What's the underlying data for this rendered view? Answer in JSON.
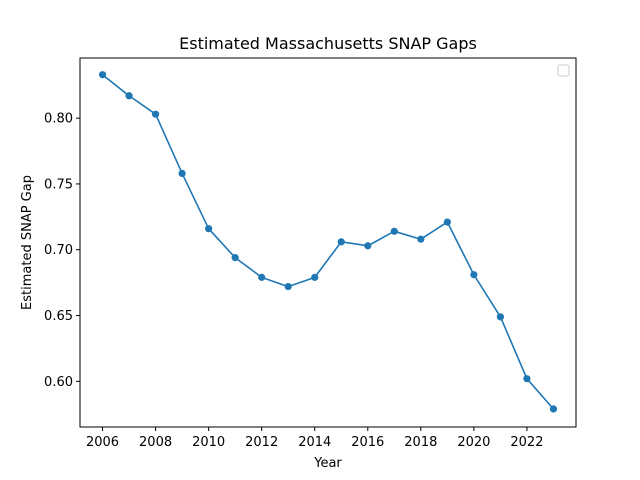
{
  "chart_data": {
    "type": "line",
    "title": "Estimated Massachusetts SNAP Gaps",
    "xlabel": "Year",
    "ylabel": "Estimated SNAP Gap",
    "x": [
      2006,
      2007,
      2008,
      2009,
      2010,
      2011,
      2012,
      2013,
      2014,
      2015,
      2016,
      2017,
      2018,
      2019,
      2020,
      2021,
      2022,
      2023
    ],
    "series": [
      {
        "name": "",
        "color": "#1f77b4",
        "values": [
          0.833,
          0.817,
          0.803,
          0.758,
          0.716,
          0.694,
          0.679,
          0.672,
          0.679,
          0.706,
          0.703,
          0.714,
          0.708,
          0.721,
          0.681,
          0.649,
          0.602,
          0.579
        ]
      }
    ],
    "xlim": [
      2005.15,
      2023.85
    ],
    "ylim": [
      0.5653,
      0.8457
    ],
    "xticks": [
      2006,
      2008,
      2010,
      2012,
      2014,
      2016,
      2018,
      2020,
      2022
    ],
    "yticks": [
      0.6,
      0.65,
      0.7,
      0.75,
      0.8
    ],
    "ytick_labels": [
      "0.60",
      "0.65",
      "0.70",
      "0.75",
      "0.80"
    ],
    "legend": "top-right",
    "grid": false
  }
}
